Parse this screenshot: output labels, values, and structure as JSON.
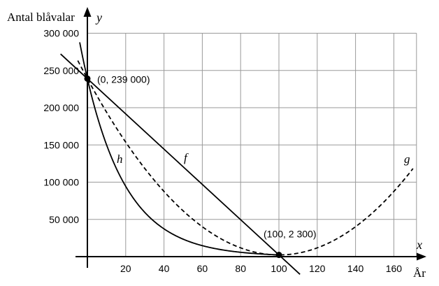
{
  "chart_data": {
    "type": "line",
    "title": "",
    "ylabel": "Antal blåvalar",
    "y_axis_symbol": "y",
    "xlabel": "År",
    "x_axis_symbol": "x",
    "xlim": [
      0,
      170
    ],
    "ylim": [
      0,
      300000
    ],
    "grid": true,
    "x_ticks": [
      20,
      40,
      60,
      80,
      100,
      120,
      140,
      160
    ],
    "x_tick_labels": [
      "20",
      "40",
      "60",
      "80",
      "100",
      "120",
      "140",
      "160"
    ],
    "y_ticks": [
      50000,
      100000,
      150000,
      200000,
      250000,
      300000
    ],
    "y_tick_labels": [
      "50 000",
      "100 000",
      "150 000",
      "200 000",
      "250 000",
      "300 000"
    ],
    "series": [
      {
        "name": "f",
        "style": "solid",
        "x_range": [
          -14,
          111
        ],
        "points": [
          [
            0,
            239000
          ],
          [
            100,
            2300
          ]
        ]
      },
      {
        "name": "g",
        "style": "dashed",
        "x_range": [
          -5,
          170
        ],
        "vertex": [
          100,
          2300
        ],
        "points": [
          [
            0,
            239000
          ],
          [
            100,
            2300
          ],
          [
            170,
            118000
          ]
        ]
      },
      {
        "name": "h",
        "style": "solid",
        "x_range": [
          -4,
          100
        ],
        "points": [
          [
            0,
            239000
          ],
          [
            100,
            2300
          ]
        ]
      }
    ],
    "points": [
      {
        "x": 0,
        "y": 239000,
        "label": "(0, 239 000)"
      },
      {
        "x": 100,
        "y": 2300,
        "label": "(100, 2 300)"
      }
    ],
    "colors": {
      "line": "#000000",
      "grid": "#9a9a9a",
      "background": "#ffffff"
    }
  }
}
